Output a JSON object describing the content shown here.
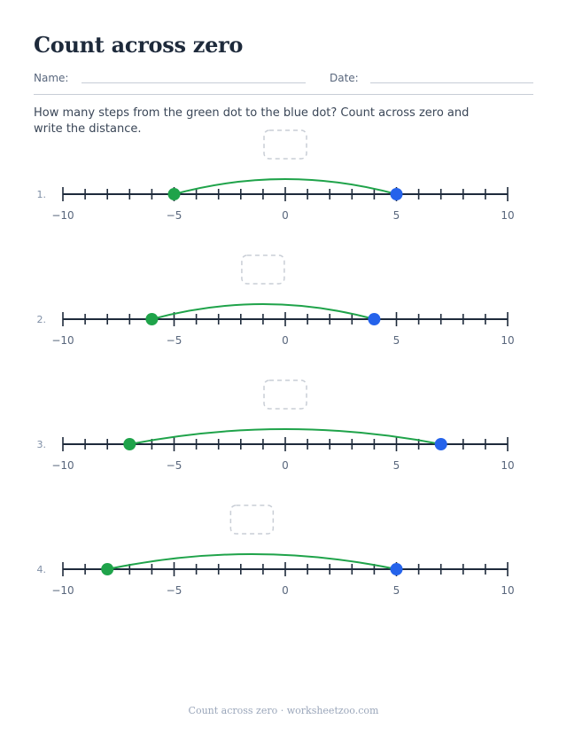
{
  "title": "Count across zero",
  "name_label": "Name:",
  "date_label": "Date:",
  "instructions": "How many steps from the green dot to the blue dot? Count across zero and write the distance.",
  "footer": "Count across zero · worksheetzoo.com",
  "colors": {
    "green": "#1fa34a",
    "blue": "#2563eb",
    "axis": "#1e2a3b",
    "answer_box": "#c9ced6"
  },
  "number_line": {
    "min": -10,
    "max": 10,
    "step": 1,
    "labeled_ticks": [
      -10,
      -5,
      0,
      5,
      10
    ]
  },
  "problems": [
    {
      "number": "1.",
      "green": -5,
      "blue": 5
    },
    {
      "number": "2.",
      "green": -6,
      "blue": 4
    },
    {
      "number": "3.",
      "green": -7,
      "blue": 7
    },
    {
      "number": "4.",
      "green": -8,
      "blue": 5
    }
  ]
}
